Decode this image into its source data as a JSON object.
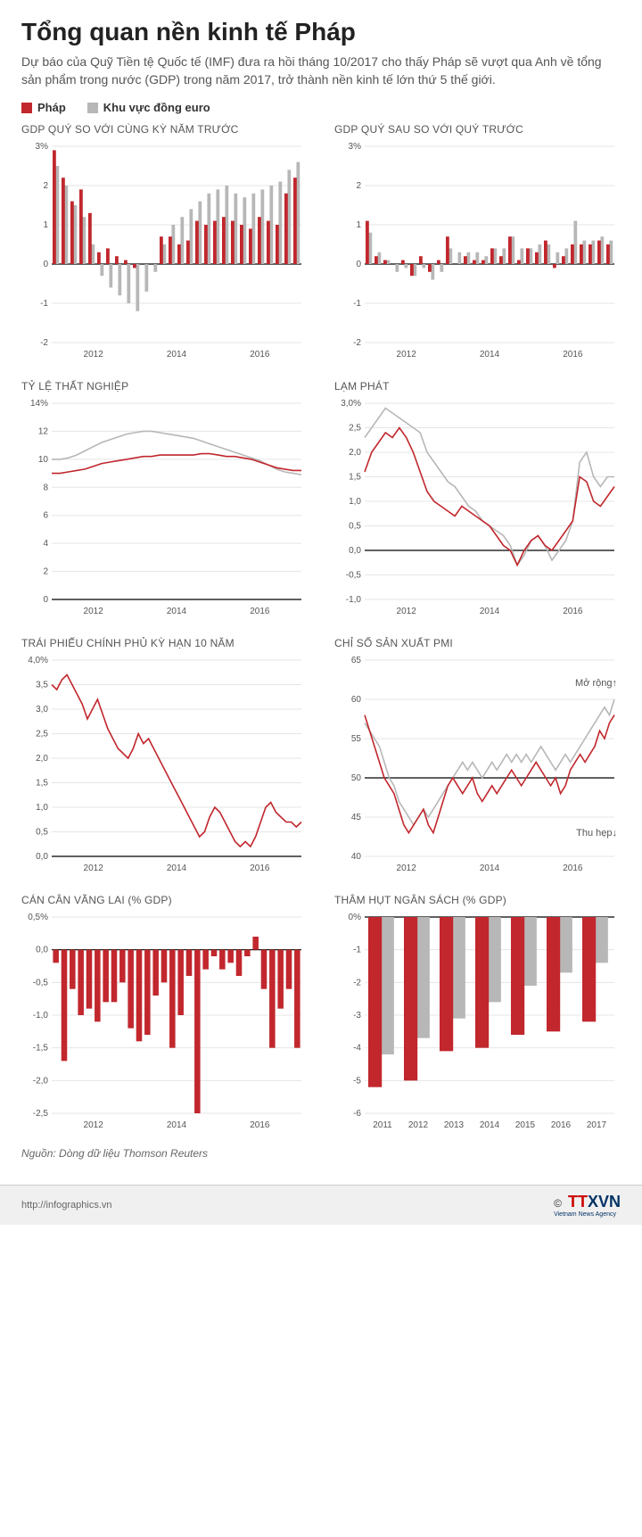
{
  "colors": {
    "france": "#c1272d",
    "euro": "#b7b7b7",
    "axis": "#888888",
    "grid": "#e5e5e5",
    "zero": "#000000",
    "text": "#555555",
    "bg": "#ffffff"
  },
  "title": "Tổng quan nền kinh tế Pháp",
  "subtitle": "Dự báo của Quỹ Tiền tệ Quốc tế (IMF) đưa ra hồi tháng 10/2017 cho thấy Pháp sẽ vượt qua Anh về tổng sản phẩm trong nước (GDP) trong năm 2017, trở thành nền kinh tế lớn thứ 5 thế giới.",
  "legend": {
    "france": "Pháp",
    "euro": "Khu vực đồng euro"
  },
  "xticks_years": [
    "2012",
    "2014",
    "2016"
  ],
  "panels": {
    "gdp_yoy": {
      "title": "GDP QUÝ SO VỚI CÙNG KỲ NĂM TRƯỚC",
      "type": "bar-paired",
      "ylim": [
        -2,
        3
      ],
      "yticks": [
        "-2",
        "-1",
        "0",
        "1",
        "2",
        "3%"
      ],
      "france": [
        2.9,
        2.2,
        1.6,
        1.9,
        1.3,
        0.3,
        0.4,
        0.2,
        0.1,
        -0.1,
        0.0,
        0.0,
        0.7,
        0.7,
        0.5,
        0.6,
        1.1,
        1.0,
        1.1,
        1.2,
        1.1,
        1.0,
        0.9,
        1.2,
        1.1,
        1.0,
        1.8,
        2.2
      ],
      "euro": [
        2.5,
        2.0,
        1.5,
        1.2,
        0.5,
        -0.3,
        -0.6,
        -0.8,
        -1.0,
        -1.2,
        -0.7,
        -0.2,
        0.5,
        1.0,
        1.2,
        1.4,
        1.6,
        1.8,
        1.9,
        2.0,
        1.8,
        1.7,
        1.8,
        1.9,
        2.0,
        2.1,
        2.4,
        2.6
      ]
    },
    "gdp_qoq": {
      "title": "GDP QUÝ SAU SO VỚI QUÝ TRƯỚC",
      "type": "bar-paired",
      "ylim": [
        -2,
        3
      ],
      "yticks": [
        "-2",
        "-1",
        "0",
        "1",
        "2",
        "3%"
      ],
      "france": [
        1.1,
        0.2,
        0.1,
        0.0,
        0.1,
        -0.3,
        0.2,
        -0.2,
        0.1,
        0.7,
        0.0,
        0.2,
        0.1,
        0.1,
        0.4,
        0.2,
        0.7,
        0.1,
        0.4,
        0.3,
        0.6,
        -0.1,
        0.2,
        0.5,
        0.5,
        0.5,
        0.6,
        0.5
      ],
      "euro": [
        0.8,
        0.3,
        0.1,
        -0.2,
        -0.1,
        -0.3,
        -0.1,
        -0.4,
        -0.2,
        0.4,
        0.3,
        0.3,
        0.3,
        0.2,
        0.4,
        0.4,
        0.7,
        0.4,
        0.4,
        0.5,
        0.5,
        0.3,
        0.4,
        1.1,
        0.6,
        0.6,
        0.7,
        0.6
      ]
    },
    "unemployment": {
      "title": "TỶ LỆ THẤT NGHIỆP",
      "type": "line",
      "ylim": [
        0,
        14
      ],
      "yticks": [
        "0",
        "2",
        "4",
        "6",
        "8",
        "10",
        "12",
        "14%"
      ],
      "france": [
        9.0,
        9.0,
        9.1,
        9.2,
        9.3,
        9.5,
        9.7,
        9.8,
        9.9,
        10.0,
        10.1,
        10.2,
        10.2,
        10.3,
        10.3,
        10.3,
        10.3,
        10.3,
        10.4,
        10.4,
        10.3,
        10.2,
        10.2,
        10.1,
        10.0,
        9.8,
        9.6,
        9.4,
        9.3,
        9.2,
        9.2
      ],
      "euro": [
        10.0,
        10.0,
        10.1,
        10.3,
        10.6,
        10.9,
        11.2,
        11.4,
        11.6,
        11.8,
        11.9,
        12.0,
        12.0,
        11.9,
        11.8,
        11.7,
        11.6,
        11.5,
        11.3,
        11.1,
        10.9,
        10.7,
        10.5,
        10.3,
        10.1,
        9.9,
        9.6,
        9.3,
        9.1,
        9.0,
        8.9
      ]
    },
    "inflation": {
      "title": "LẠM PHÁT",
      "type": "line",
      "ylim": [
        -1.0,
        3.0
      ],
      "yticks": [
        "-1,0",
        "-0,5",
        "0,0",
        "0,5",
        "1,0",
        "1,5",
        "2,0",
        "2,5",
        "3,0%"
      ],
      "zero_at": 0,
      "france": [
        1.6,
        2.0,
        2.2,
        2.4,
        2.3,
        2.5,
        2.3,
        2.0,
        1.6,
        1.2,
        1.0,
        0.9,
        0.8,
        0.7,
        0.9,
        0.8,
        0.7,
        0.6,
        0.5,
        0.3,
        0.1,
        0.0,
        -0.3,
        0.0,
        0.2,
        0.3,
        0.1,
        0.0,
        0.2,
        0.4,
        0.6,
        1.5,
        1.4,
        1.0,
        0.9,
        1.1,
        1.3
      ],
      "euro": [
        2.3,
        2.5,
        2.7,
        2.9,
        2.8,
        2.7,
        2.6,
        2.5,
        2.4,
        2.0,
        1.8,
        1.6,
        1.4,
        1.3,
        1.1,
        0.9,
        0.8,
        0.6,
        0.5,
        0.4,
        0.3,
        0.1,
        -0.3,
        -0.1,
        0.2,
        0.3,
        0.1,
        -0.2,
        0.0,
        0.2,
        0.6,
        1.8,
        2.0,
        1.5,
        1.3,
        1.5,
        1.5
      ]
    },
    "bonds": {
      "title": "TRÁI PHIẾU CHÍNH PHỦ KỲ HẠN 10 NĂM",
      "type": "line",
      "ylim": [
        0.0,
        4.0
      ],
      "yticks": [
        "0,0",
        "0,5",
        "1,0",
        "1,5",
        "2,0",
        "2,5",
        "3,0",
        "3,5",
        "4,0%"
      ],
      "france": [
        3.5,
        3.4,
        3.6,
        3.7,
        3.5,
        3.3,
        3.1,
        2.8,
        3.0,
        3.2,
        2.9,
        2.6,
        2.4,
        2.2,
        2.1,
        2.0,
        2.2,
        2.5,
        2.3,
        2.4,
        2.2,
        2.0,
        1.8,
        1.6,
        1.4,
        1.2,
        1.0,
        0.8,
        0.6,
        0.4,
        0.5,
        0.8,
        1.0,
        0.9,
        0.7,
        0.5,
        0.3,
        0.2,
        0.3,
        0.2,
        0.4,
        0.7,
        1.0,
        1.1,
        0.9,
        0.8,
        0.7,
        0.7,
        0.6,
        0.7
      ]
    },
    "pmi": {
      "title": "CHỈ SỐ SẢN XUẤT PMI",
      "type": "line",
      "ylim": [
        40,
        65
      ],
      "yticks": [
        "40",
        "45",
        "50",
        "55",
        "60",
        "65"
      ],
      "zero_at": 50,
      "annot_top": "Mở rộng↑",
      "annot_bottom": "Thu hẹp↓",
      "france": [
        58,
        56,
        54,
        52,
        50,
        49,
        48,
        46,
        44,
        43,
        44,
        45,
        46,
        44,
        43,
        45,
        47,
        49,
        50,
        49,
        48,
        49,
        50,
        48,
        47,
        48,
        49,
        48,
        49,
        50,
        51,
        50,
        49,
        50,
        51,
        52,
        51,
        50,
        49,
        50,
        48,
        49,
        51,
        52,
        53,
        52,
        53,
        54,
        56,
        55,
        57,
        58
      ],
      "euro": [
        57,
        56,
        55,
        54,
        52,
        50,
        49,
        47,
        46,
        45,
        44,
        45,
        46,
        45,
        46,
        47,
        48,
        49,
        50,
        51,
        52,
        51,
        52,
        51,
        50,
        51,
        52,
        51,
        52,
        53,
        52,
        53,
        52,
        53,
        52,
        53,
        54,
        53,
        52,
        51,
        52,
        53,
        52,
        53,
        54,
        55,
        56,
        57,
        58,
        59,
        58,
        60
      ]
    },
    "current_account": {
      "title": "CÁN CÂN VÃNG LAI (% GDP)",
      "type": "bar-single",
      "ylim": [
        -2.5,
        0.5
      ],
      "yticks": [
        "-2,5",
        "-2,0",
        "-1,5",
        "-1,0",
        "-0,5",
        "0,0",
        "0,5%"
      ],
      "france": [
        -0.2,
        -1.7,
        -0.6,
        -1.0,
        -0.9,
        -1.1,
        -0.8,
        -0.8,
        -0.5,
        -1.2,
        -1.4,
        -1.3,
        -0.7,
        -0.5,
        -1.5,
        -1.0,
        -0.4,
        -2.5,
        -0.3,
        -0.1,
        -0.3,
        -0.2,
        -0.4,
        -0.1,
        0.2,
        -0.6,
        -1.5,
        -0.9,
        -0.6,
        -1.5
      ]
    },
    "deficit": {
      "title": "THÂM HỤT NGÂN SÁCH (% GDP)",
      "type": "bar-paired-annual",
      "ylim": [
        -6,
        0
      ],
      "yticks": [
        "-6",
        "-5",
        "-4",
        "-3",
        "-2",
        "-1",
        "0%"
      ],
      "categories": [
        "2011",
        "2012",
        "2013",
        "2014",
        "2015",
        "2016",
        "2017"
      ],
      "france": [
        -5.2,
        -5.0,
        -4.1,
        -4.0,
        -3.6,
        -3.5,
        -3.2
      ],
      "euro": [
        -4.2,
        -3.7,
        -3.1,
        -2.6,
        -2.1,
        -1.7,
        -1.4
      ]
    }
  },
  "source": "Nguồn: Dòng dữ liệu Thomson Reuters",
  "footer_url": "http://infographics.vn",
  "logo_main": "TTXVN",
  "logo_sub": "Vietnam News Agency"
}
